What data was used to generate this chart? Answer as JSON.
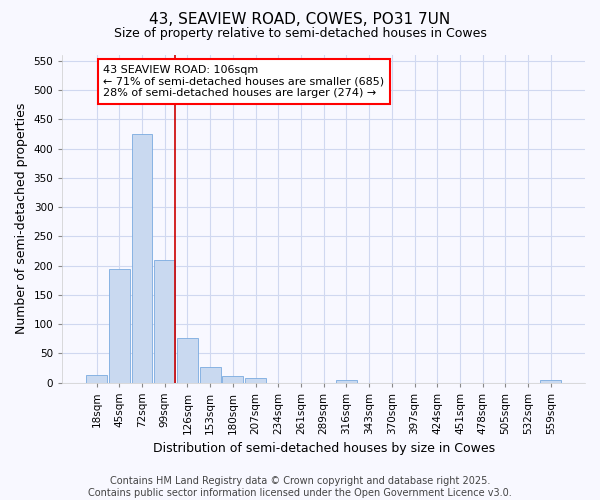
{
  "title": "43, SEAVIEW ROAD, COWES, PO31 7UN",
  "subtitle": "Size of property relative to semi-detached houses in Cowes",
  "xlabel": "Distribution of semi-detached houses by size in Cowes",
  "ylabel": "Number of semi-detached properties",
  "bar_labels": [
    "18sqm",
    "45sqm",
    "72sqm",
    "99sqm",
    "126sqm",
    "153sqm",
    "180sqm",
    "207sqm",
    "234sqm",
    "261sqm",
    "289sqm",
    "316sqm",
    "343sqm",
    "370sqm",
    "397sqm",
    "424sqm",
    "451sqm",
    "478sqm",
    "505sqm",
    "532sqm",
    "559sqm"
  ],
  "bar_values": [
    13,
    194,
    425,
    210,
    76,
    27,
    11,
    7,
    0,
    0,
    0,
    5,
    0,
    0,
    0,
    0,
    0,
    0,
    0,
    0,
    5
  ],
  "bar_color": "#c9d9f0",
  "bar_edge_color": "#7aabe0",
  "ylim": [
    0,
    560
  ],
  "yticks": [
    0,
    50,
    100,
    150,
    200,
    250,
    300,
    350,
    400,
    450,
    500,
    550
  ],
  "vline_x_index": 3,
  "vline_color": "#cc0000",
  "annotation_line1": "43 SEAVIEW ROAD: 106sqm",
  "annotation_line2": "← 71% of semi-detached houses are smaller (685)",
  "annotation_line3": "28% of semi-detached houses are larger (274) →",
  "footer_line1": "Contains HM Land Registry data © Crown copyright and database right 2025.",
  "footer_line2": "Contains public sector information licensed under the Open Government Licence v3.0.",
  "background_color": "#f8f8ff",
  "grid_color": "#d0d8f0",
  "title_fontsize": 11,
  "subtitle_fontsize": 9,
  "axis_label_fontsize": 9,
  "tick_fontsize": 7.5,
  "footer_fontsize": 7,
  "annotation_fontsize": 8
}
